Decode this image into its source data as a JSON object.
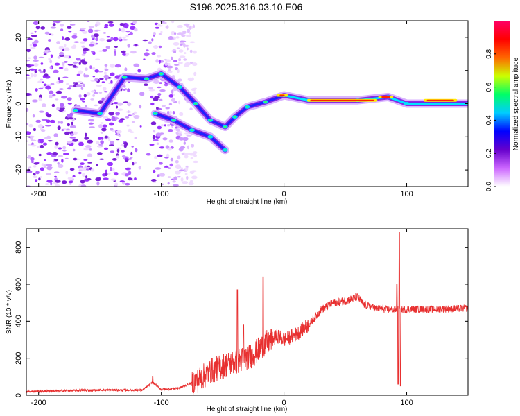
{
  "title": "S196.2025.316.03.10.E06",
  "chart_data": [
    {
      "type": "heatmap",
      "name": "spectrogram",
      "xlabel": "Height of straight line (km)",
      "ylabel": "Frequency (Hz)",
      "xlim": [
        -210,
        150
      ],
      "ylim": [
        -25,
        25
      ],
      "xticks": [
        -200,
        -100,
        0,
        100
      ],
      "yticks": [
        -20,
        -10,
        0,
        10,
        20
      ],
      "colorbar": {
        "label": "Normalized spectral amplitude",
        "range": [
          0,
          1
        ],
        "ticks": [
          0.0,
          0.2,
          0.4,
          0.6,
          0.8
        ],
        "colors": [
          "#ffffff",
          "#cc66ff",
          "#6600cc",
          "#0000ff",
          "#00ccff",
          "#00ff66",
          "#ccff00",
          "#ff6600",
          "#ff0000",
          "#ff0066"
        ]
      },
      "main_trace": [
        {
          "x": -170,
          "y": -2
        },
        {
          "x": -150,
          "y": -3
        },
        {
          "x": -130,
          "y": 8
        },
        {
          "x": -112,
          "y": 7.5
        },
        {
          "x": -100,
          "y": 9
        },
        {
          "x": -85,
          "y": 5
        },
        {
          "x": -72,
          "y": 0
        },
        {
          "x": -60,
          "y": -5
        },
        {
          "x": -48,
          "y": -7
        },
        {
          "x": -40,
          "y": -4
        },
        {
          "x": -30,
          "y": -1
        },
        {
          "x": -15,
          "y": 0.5
        },
        {
          "x": 0,
          "y": 2.5
        },
        {
          "x": 20,
          "y": 1
        },
        {
          "x": 60,
          "y": 1
        },
        {
          "x": 85,
          "y": 2
        },
        {
          "x": 100,
          "y": 0
        },
        {
          "x": 150,
          "y": 0
        }
      ],
      "lower_trace": [
        {
          "x": -105,
          "y": -3
        },
        {
          "x": -90,
          "y": -5
        },
        {
          "x": -75,
          "y": -8
        },
        {
          "x": -60,
          "y": -10
        },
        {
          "x": -48,
          "y": -14
        }
      ],
      "hot_segments": [
        {
          "x0": 20,
          "x1": 75,
          "y": 1
        },
        {
          "x0": 115,
          "x1": 140,
          "y": 1
        },
        {
          "x0": -5,
          "x1": 2,
          "y": 2.5
        },
        {
          "x0": 78,
          "x1": 88,
          "y": 2
        }
      ]
    },
    {
      "type": "line",
      "name": "snr",
      "xlabel": "Height of straight line (km)",
      "ylabel": "SNR (10 * v/v)",
      "xlim": [
        -210,
        150
      ],
      "ylim": [
        0,
        900
      ],
      "xticks": [
        -200,
        -100,
        0,
        100
      ],
      "yticks": [
        0,
        200,
        400,
        600,
        800
      ],
      "color": "#e83030",
      "baseline": [
        {
          "x": -210,
          "y": 20
        },
        {
          "x": -150,
          "y": 28
        },
        {
          "x": -115,
          "y": 28
        },
        {
          "x": -107,
          "y": 70
        },
        {
          "x": -100,
          "y": 30
        },
        {
          "x": -85,
          "y": 40
        },
        {
          "x": -70,
          "y": 80
        },
        {
          "x": -60,
          "y": 130
        },
        {
          "x": -45,
          "y": 170
        },
        {
          "x": -35,
          "y": 190
        },
        {
          "x": -25,
          "y": 220
        },
        {
          "x": -15,
          "y": 280
        },
        {
          "x": -5,
          "y": 320
        },
        {
          "x": 0,
          "y": 300
        },
        {
          "x": 10,
          "y": 330
        },
        {
          "x": 20,
          "y": 380
        },
        {
          "x": 30,
          "y": 460
        },
        {
          "x": 40,
          "y": 500
        },
        {
          "x": 50,
          "y": 510
        },
        {
          "x": 60,
          "y": 530
        },
        {
          "x": 65,
          "y": 490
        },
        {
          "x": 75,
          "y": 470
        },
        {
          "x": 90,
          "y": 460
        },
        {
          "x": 100,
          "y": 465
        },
        {
          "x": 120,
          "y": 465
        },
        {
          "x": 150,
          "y": 470
        }
      ],
      "spikes": [
        {
          "x": -107,
          "y": 100
        },
        {
          "x": -38,
          "y": 570
        },
        {
          "x": -33,
          "y": 380
        },
        {
          "x": -26,
          "y": 250
        },
        {
          "x": -17,
          "y": 640
        },
        {
          "x": 92,
          "y": 600
        },
        {
          "x": 93,
          "y": 60
        },
        {
          "x": 94,
          "y": 880
        },
        {
          "x": 95,
          "y": 50
        }
      ]
    }
  ]
}
